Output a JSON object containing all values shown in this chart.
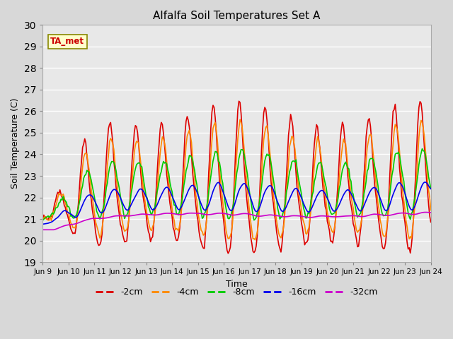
{
  "title": "Alfalfa Soil Temperatures Set A",
  "xlabel": "Time",
  "ylabel": "Soil Temperature (C)",
  "ylim": [
    19.0,
    30.0
  ],
  "yticks": [
    19.0,
    20.0,
    21.0,
    22.0,
    23.0,
    24.0,
    25.0,
    26.0,
    27.0,
    28.0,
    29.0,
    30.0
  ],
  "fig_bg_color": "#d8d8d8",
  "plot_bg_color": "#e8e8e8",
  "series": {
    "-2cm": {
      "color": "#dd0000",
      "lw": 1.2
    },
    "-4cm": {
      "color": "#ff8800",
      "lw": 1.2
    },
    "-8cm": {
      "color": "#00cc00",
      "lw": 1.2
    },
    "-16cm": {
      "color": "#0000ee",
      "lw": 1.2
    },
    "-32cm": {
      "color": "#cc00cc",
      "lw": 1.2
    }
  },
  "annotation": {
    "text": "TA_met",
    "color": "#cc0000",
    "bg": "#ffffcc",
    "edge": "#888800"
  },
  "xtick_labels": [
    "Jun 9",
    "Jun 10",
    "Jun 11",
    "Jun 12",
    "Jun 13",
    "Jun 14",
    "Jun 15",
    "Jun 16",
    "Jun 17",
    "Jun 18",
    "Jun 19",
    "Jun 20",
    "Jun 21",
    "Jun 22",
    "Jun 23",
    "Jun 24"
  ],
  "xtick_positions": [
    0,
    24,
    48,
    72,
    96,
    120,
    144,
    168,
    192,
    216,
    240,
    264,
    288,
    312,
    336,
    360
  ]
}
